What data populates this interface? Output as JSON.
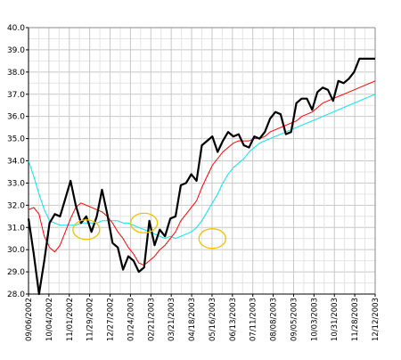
{
  "chart_data": {
    "type": "line",
    "title": "",
    "xlabel": "",
    "ylabel": "",
    "ylim": [
      28.0,
      40.0
    ],
    "grid": true,
    "y_ticks": [
      "28.0",
      "29.0",
      "30.0",
      "31.0",
      "32.0",
      "33.0",
      "34.0",
      "35.0",
      "36.0",
      "37.0",
      "38.0",
      "39.0",
      "40.0"
    ],
    "x_ticks": [
      "09/06/2002",
      "10/04/2002",
      "11/01/2002",
      "11/29/2002",
      "12/27/2002",
      "01/24/2003",
      "02/21/2003",
      "03/21/2003",
      "04/18/2003",
      "05/16/2003",
      "06/13/2003",
      "07/11/2003",
      "08/08/2003",
      "09/05/2003",
      "10/03/2003",
      "10/31/2003",
      "11/28/2003",
      "12/12/2003"
    ],
    "colors": {
      "price": "#000000",
      "short_ma": "#ff0000",
      "long_ma": "#00e5ee",
      "circles": "#f2c100",
      "grid": "#c8c8c8"
    },
    "series": [
      {
        "x": [
          "09/06/2002",
          "09/13/2002",
          "09/20/2002",
          "09/27/2002",
          "10/04/2002",
          "10/11/2002",
          "10/18/2002",
          "10/25/2002",
          "11/01/2002",
          "11/08/2002",
          "11/15/2002",
          "11/22/2002",
          "11/29/2002",
          "12/06/2002",
          "12/13/2002",
          "12/20/2002",
          "12/27/2002",
          "01/03/2003",
          "01/10/2003",
          "01/17/2003",
          "01/24/2003",
          "01/31/2003",
          "02/07/2003",
          "02/14/2003",
          "02/21/2003",
          "02/28/2003",
          "03/07/2003",
          "03/14/2003",
          "03/21/2003",
          "03/28/2003",
          "04/04/2003",
          "04/11/2003",
          "04/18/2003",
          "04/25/2003",
          "05/02/2003",
          "05/09/2003",
          "05/16/2003",
          "05/23/2003",
          "05/30/2003",
          "06/06/2003",
          "06/13/2003",
          "06/20/2003",
          "06/27/2003",
          "07/04/2003",
          "07/11/2003",
          "07/18/2003",
          "07/25/2003",
          "08/01/2003",
          "08/08/2003",
          "08/15/2003",
          "08/22/2003",
          "08/29/2003",
          "09/05/2003",
          "09/12/2003",
          "09/19/2003",
          "09/26/2003",
          "10/03/2003",
          "10/10/2003",
          "10/17/2003",
          "10/24/2003",
          "10/31/2003",
          "11/07/2003",
          "11/14/2003",
          "11/21/2003",
          "11/28/2003",
          "12/05/2003",
          "12/12/2003"
        ],
        "values": [
          31.4,
          29.8,
          28.0,
          29.5,
          31.2,
          31.6,
          31.5,
          32.3,
          33.1,
          32.0,
          31.2,
          31.5,
          30.8,
          31.5,
          32.7,
          31.6,
          30.3,
          30.1,
          29.1,
          29.7,
          29.5,
          29.0,
          29.2,
          31.3,
          30.2,
          30.9,
          30.6,
          31.4,
          31.5,
          32.9,
          33.0,
          33.4,
          33.1,
          34.7,
          34.9,
          35.1,
          34.4,
          34.9,
          35.3,
          35.1,
          35.2,
          34.7,
          34.6,
          35.1,
          35.0,
          35.3,
          35.9,
          36.2,
          36.1,
          35.2,
          35.3,
          36.6,
          36.8,
          36.8,
          36.3,
          37.1,
          37.3,
          37.2,
          36.7,
          37.6,
          37.5,
          37.7,
          38.0,
          38.6,
          38.6,
          38.6,
          38.6
        ]
      },
      {
        "values": [
          31.8,
          31.9,
          31.6,
          30.6,
          30.1,
          29.9,
          30.2,
          30.8,
          31.4,
          31.9,
          32.1,
          32.0,
          31.9,
          31.8,
          31.7,
          31.5,
          31.2,
          30.8,
          30.5,
          30.1,
          29.8,
          29.4,
          29.3,
          29.5,
          29.7,
          30.0,
          30.2,
          30.5,
          30.8,
          31.3,
          31.6,
          31.9,
          32.2,
          32.8,
          33.3,
          33.8,
          34.1,
          34.4,
          34.6,
          34.8,
          34.9,
          34.9,
          34.9,
          35.0,
          35.0,
          35.1,
          35.3,
          35.4,
          35.5,
          35.6,
          35.7,
          35.8,
          36.0,
          36.1,
          36.2,
          36.4,
          36.6,
          36.7,
          36.8,
          36.9,
          37.0,
          37.1,
          37.2,
          37.3,
          37.4,
          37.5,
          37.6
        ]
      },
      {
        "values": [
          34.0,
          33.3,
          32.5,
          31.8,
          31.3,
          31.2,
          31.1,
          31.1,
          31.1,
          31.1,
          31.2,
          31.2,
          31.2,
          31.2,
          31.3,
          31.3,
          31.3,
          31.3,
          31.2,
          31.2,
          31.1,
          31.0,
          30.9,
          30.8,
          30.7,
          30.6,
          30.5,
          30.6,
          30.5,
          30.6,
          30.7,
          30.8,
          31.0,
          31.3,
          31.7,
          32.1,
          32.5,
          33.0,
          33.4,
          33.7,
          33.9,
          34.1,
          34.4,
          34.6,
          34.8,
          34.9,
          35.0,
          35.1,
          35.2,
          35.3,
          35.4,
          35.5,
          35.6,
          35.7,
          35.8,
          35.9,
          36.0,
          36.1,
          36.2,
          36.3,
          36.4,
          36.5,
          36.6,
          36.7,
          36.8,
          36.9,
          37.0
        ]
      }
    ],
    "circles": [
      {
        "x_index": 11,
        "y": 30.9
      },
      {
        "x_index": 22,
        "y": 31.2
      },
      {
        "x_index": 35,
        "y": 30.5
      }
    ]
  }
}
